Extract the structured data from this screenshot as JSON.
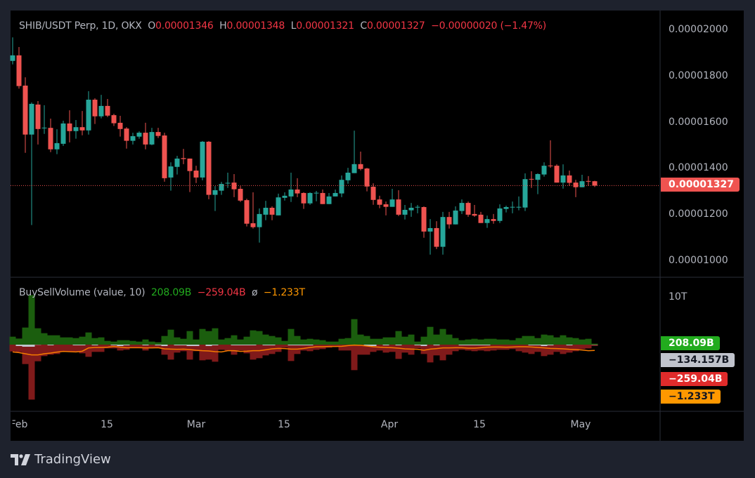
{
  "header": {
    "symbol": "SHIB/USDT Perp, 1D, OKX",
    "o_label": "O",
    "o_value": "0.00001346",
    "h_label": "H",
    "h_value": "0.00001348",
    "l_label": "L",
    "l_value": "0.00001321",
    "c_label": "C",
    "c_value": "0.00001327",
    "change": "−0.00000020 (−1.47%)"
  },
  "indicator": {
    "name": "BuySellVolume (value, 10)",
    "buy": "208.09B",
    "sell": "−259.04B",
    "sep": "ø",
    "ma": "−1.233T",
    "axis_label": "10T",
    "tags": {
      "buy": "208.09B",
      "delta": "−134.157B",
      "sell": "−259.04B",
      "ma": "−1.233T"
    }
  },
  "price_axis": {
    "labels": [
      "0.00002000",
      "0.00001800",
      "0.00001600",
      "0.00001400",
      "0.00001200",
      "0.00001000"
    ],
    "current": "0.00001327"
  },
  "time_axis": {
    "labels": [
      "Feb",
      "15",
      "Mar",
      "15",
      "Apr",
      "15",
      "May"
    ]
  },
  "branding": {
    "name": "TradingView"
  },
  "colors": {
    "up": "#26a69a",
    "down": "#ef5350",
    "buy": "#1b5e0e",
    "sell": "#801a1a",
    "ma": "#f57c00",
    "delta": "#c0c3cc"
  },
  "chart_data": [
    {
      "type": "candlestick",
      "title": "SHIB/USDT Perp, 1D, OKX",
      "price_unit": 1e-08,
      "ylim": [
        1000,
        2000
      ],
      "yticks": [
        2000,
        1800,
        1600,
        1400,
        1200,
        1000
      ],
      "x_range": "Feb 1 – May 3, daily",
      "ohlc": [
        [
          1867,
          1969,
          1852,
          1891
        ],
        [
          1891,
          1927,
          1747,
          1758
        ],
        [
          1760,
          1796,
          1469,
          1548
        ],
        [
          1548,
          1687,
          1156,
          1681
        ],
        [
          1678,
          1693,
          1505,
          1572
        ],
        [
          1576,
          1675,
          1551,
          1578
        ],
        [
          1577,
          1617,
          1472,
          1484
        ],
        [
          1484,
          1571,
          1463,
          1511
        ],
        [
          1508,
          1608,
          1499,
          1596
        ],
        [
          1596,
          1653,
          1514,
          1563
        ],
        [
          1563,
          1611,
          1530,
          1580
        ],
        [
          1580,
          1650,
          1545,
          1566
        ],
        [
          1566,
          1736,
          1548,
          1699
        ],
        [
          1699,
          1705,
          1594,
          1627
        ],
        [
          1627,
          1720,
          1618,
          1672
        ],
        [
          1672,
          1702,
          1624,
          1630
        ],
        [
          1632,
          1638,
          1585,
          1597
        ],
        [
          1599,
          1629,
          1539,
          1572
        ],
        [
          1574,
          1580,
          1487,
          1521
        ],
        [
          1521,
          1556,
          1505,
          1541
        ],
        [
          1539,
          1562,
          1530,
          1556
        ],
        [
          1556,
          1599,
          1484,
          1505
        ],
        [
          1505,
          1577,
          1502,
          1559
        ],
        [
          1559,
          1577,
          1533,
          1542
        ],
        [
          1544,
          1556,
          1344,
          1359
        ],
        [
          1362,
          1428,
          1305,
          1410
        ],
        [
          1408,
          1456,
          1375,
          1444
        ],
        [
          1446,
          1486,
          1420,
          1442
        ],
        [
          1444,
          1444,
          1299,
          1390
        ],
        [
          1392,
          1413,
          1338,
          1362
        ],
        [
          1362,
          1520,
          1350,
          1517
        ],
        [
          1517,
          1520,
          1268,
          1287
        ],
        [
          1287,
          1325,
          1217,
          1307
        ],
        [
          1305,
          1343,
          1287,
          1334
        ],
        [
          1336,
          1383,
          1317,
          1339
        ],
        [
          1340,
          1377,
          1277,
          1311
        ],
        [
          1313,
          1325,
          1256,
          1262
        ],
        [
          1264,
          1270,
          1150,
          1162
        ],
        [
          1164,
          1298,
          1141,
          1147
        ],
        [
          1147,
          1228,
          1080,
          1204
        ],
        [
          1201,
          1261,
          1177,
          1231
        ],
        [
          1231,
          1237,
          1177,
          1201
        ],
        [
          1198,
          1292,
          1198,
          1276
        ],
        [
          1274,
          1298,
          1262,
          1283
        ],
        [
          1280,
          1383,
          1256,
          1310
        ],
        [
          1310,
          1359,
          1277,
          1293
        ],
        [
          1295,
          1298,
          1226,
          1250
        ],
        [
          1250,
          1298,
          1244,
          1295
        ],
        [
          1294,
          1304,
          1259,
          1296
        ],
        [
          1295,
          1310,
          1247,
          1247
        ],
        [
          1247,
          1295,
          1247,
          1280
        ],
        [
          1280,
          1310,
          1280,
          1295
        ],
        [
          1293,
          1371,
          1277,
          1352
        ],
        [
          1350,
          1404,
          1335,
          1383
        ],
        [
          1381,
          1565,
          1381,
          1420
        ],
        [
          1420,
          1474,
          1393,
          1399
        ],
        [
          1401,
          1404,
          1302,
          1323
        ],
        [
          1322,
          1337,
          1244,
          1265
        ],
        [
          1267,
          1283,
          1229,
          1244
        ],
        [
          1246,
          1258,
          1198,
          1235
        ],
        [
          1235,
          1313,
          1235,
          1267
        ],
        [
          1267,
          1307,
          1195,
          1201
        ],
        [
          1201,
          1243,
          1180,
          1222
        ],
        [
          1220,
          1252,
          1192,
          1231
        ],
        [
          1233,
          1243,
          1207,
          1235
        ],
        [
          1234,
          1237,
          1101,
          1128
        ],
        [
          1128,
          1182,
          1028,
          1143
        ],
        [
          1143,
          1173,
          1052,
          1062
        ],
        [
          1062,
          1213,
          1028,
          1191
        ],
        [
          1191,
          1213,
          1141,
          1159
        ],
        [
          1159,
          1237,
          1159,
          1219
        ],
        [
          1217,
          1267,
          1204,
          1252
        ],
        [
          1252,
          1258,
          1192,
          1201
        ],
        [
          1204,
          1243,
          1192,
          1197
        ],
        [
          1201,
          1213,
          1165,
          1165
        ],
        [
          1165,
          1197,
          1144,
          1182
        ],
        [
          1182,
          1204,
          1162,
          1174
        ],
        [
          1174,
          1246,
          1165,
          1228
        ],
        [
          1226,
          1240,
          1211,
          1234
        ],
        [
          1233,
          1258,
          1207,
          1235
        ],
        [
          1233,
          1280,
          1220,
          1235
        ],
        [
          1232,
          1380,
          1217,
          1355
        ],
        [
          1356,
          1389,
          1317,
          1353
        ],
        [
          1352,
          1380,
          1290,
          1377
        ],
        [
          1375,
          1428,
          1366,
          1413
        ],
        [
          1414,
          1523,
          1404,
          1411
        ],
        [
          1413,
          1419,
          1340,
          1340
        ],
        [
          1340,
          1419,
          1314,
          1371
        ],
        [
          1371,
          1392,
          1326,
          1339
        ],
        [
          1340,
          1352,
          1277,
          1320
        ],
        [
          1320,
          1374,
          1320,
          1346
        ],
        [
          1347,
          1368,
          1326,
          1344
        ],
        [
          1346,
          1348,
          1321,
          1327
        ]
      ]
    },
    {
      "type": "bar",
      "title": "BuySellVolume (value, 10)",
      "unit": "B",
      "ylim": [
        -11750,
        10000
      ],
      "buy": [
        1700,
        1300,
        3650,
        10600,
        3500,
        2450,
        2000,
        2000,
        1550,
        1550,
        1400,
        1700,
        2600,
        1400,
        1550,
        800,
        650,
        950,
        950,
        800,
        650,
        1100,
        650,
        500,
        1850,
        3200,
        1550,
        1250,
        2900,
        1100,
        3350,
        2900,
        3500,
        1100,
        1400,
        2000,
        1100,
        1700,
        3050,
        2900,
        2150,
        1850,
        1550,
        800,
        3350,
        1850,
        1100,
        1250,
        1100,
        950,
        650,
        650,
        1250,
        1400,
        5450,
        2150,
        1850,
        1250,
        1250,
        1550,
        1550,
        2900,
        1700,
        2150,
        650,
        1700,
        3800,
        2150,
        3350,
        2150,
        1400,
        950,
        1100,
        1250,
        1100,
        1250,
        1250,
        1100,
        1100,
        950,
        1400,
        1850,
        1850,
        1400,
        2150,
        2000,
        1550,
        2000,
        1550,
        1400,
        1100,
        1250,
        208.09
      ],
      "sell": [
        1450,
        1600,
        4150,
        11750,
        3550,
        2450,
        2150,
        2000,
        1550,
        1550,
        1550,
        1850,
        2600,
        1550,
        1550,
        800,
        800,
        1250,
        1100,
        650,
        650,
        1250,
        650,
        650,
        2150,
        3200,
        1700,
        1400,
        3200,
        1400,
        3350,
        3200,
        3650,
        1100,
        1250,
        2150,
        1250,
        1850,
        3200,
        2900,
        2300,
        2000,
        1550,
        650,
        3500,
        2000,
        1250,
        1400,
        1100,
        950,
        650,
        500,
        1250,
        1250,
        5450,
        2150,
        2150,
        1550,
        1250,
        1700,
        1550,
        3050,
        1700,
        2150,
        800,
        2000,
        3800,
        2300,
        3350,
        2150,
        1400,
        1100,
        1250,
        1400,
        1250,
        1400,
        1250,
        1100,
        1100,
        950,
        1400,
        1700,
        2000,
        1550,
        2450,
        2150,
        1550,
        2000,
        1700,
        1400,
        950,
        800,
        259.04
      ],
      "ma": [
        -1550,
        -1700,
        -1950,
        -2200,
        -2200,
        -1950,
        -1800,
        -1600,
        -1450,
        -1500,
        -1550,
        -1400,
        -700,
        -600,
        -600,
        -550,
        -400,
        -550,
        -650,
        -650,
        -650,
        -700,
        -700,
        -650,
        -900,
        -950,
        -1000,
        -950,
        -1050,
        -1200,
        -1300,
        -1350,
        -1500,
        -1550,
        -1300,
        -1300,
        -1450,
        -1400,
        -1300,
        -1300,
        -1100,
        -900,
        -800,
        -850,
        -950,
        -950,
        -800,
        -600,
        -450,
        -450,
        -400,
        -400,
        -350,
        -200,
        -100,
        -150,
        -300,
        -450,
        -550,
        -600,
        -650,
        -750,
        -900,
        -950,
        -1000,
        -1200,
        -950,
        -850,
        -700,
        -700,
        -650,
        -650,
        -750,
        -750,
        -650,
        -550,
        -500,
        -500,
        -550,
        -500,
        -450,
        -450,
        -500,
        -600,
        -700,
        -800,
        -850,
        -900,
        -1000,
        -1050,
        -1150,
        -1300,
        -1233
      ]
    }
  ]
}
